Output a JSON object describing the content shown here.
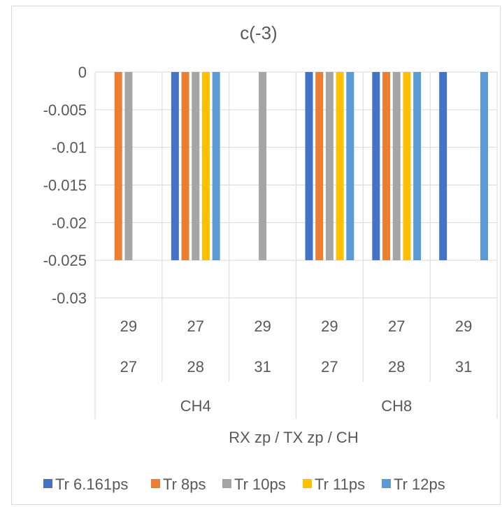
{
  "chart_data": {
    "type": "bar",
    "title": "c(-3)",
    "xlabel": "RX zp / TX zp / CH",
    "ylabel": "",
    "ylim": [
      -0.03,
      0
    ],
    "yticks": [
      "0",
      "-0.005",
      "-0.01",
      "-0.015",
      "-0.02",
      "-0.025",
      "-0.03"
    ],
    "ytick_values": [
      0,
      -0.005,
      -0.01,
      -0.015,
      -0.02,
      -0.025,
      -0.03
    ],
    "grid": true,
    "legend": "bottom",
    "categories": [
      {
        "rx": "29",
        "tx": "27",
        "ch": "CH4"
      },
      {
        "rx": "27",
        "tx": "28",
        "ch": "CH4"
      },
      {
        "rx": "29",
        "tx": "31",
        "ch": "CH4"
      },
      {
        "rx": "29",
        "tx": "27",
        "ch": "CH8"
      },
      {
        "rx": "27",
        "tx": "28",
        "ch": "CH8"
      },
      {
        "rx": "29",
        "tx": "31",
        "ch": "CH8"
      }
    ],
    "groups": [
      "CH4",
      "CH8"
    ],
    "series": [
      {
        "name": "Tr 6.161ps",
        "color": "#4472c4",
        "values": [
          0,
          -0.025,
          0,
          -0.025,
          -0.025,
          -0.025
        ]
      },
      {
        "name": "Tr 8ps",
        "color": "#ed7d31",
        "values": [
          -0.025,
          -0.025,
          0,
          -0.025,
          -0.025,
          0
        ]
      },
      {
        "name": "Tr 10ps",
        "color": "#a5a5a5",
        "values": [
          -0.025,
          -0.025,
          -0.025,
          -0.025,
          -0.025,
          0
        ]
      },
      {
        "name": "Tr 11ps",
        "color": "#ffc000",
        "values": [
          0,
          -0.025,
          0,
          -0.025,
          -0.025,
          0
        ]
      },
      {
        "name": "Tr 12ps",
        "color": "#5b9bd5",
        "values": [
          0,
          -0.025,
          0,
          -0.025,
          -0.025,
          -0.025
        ]
      }
    ]
  }
}
